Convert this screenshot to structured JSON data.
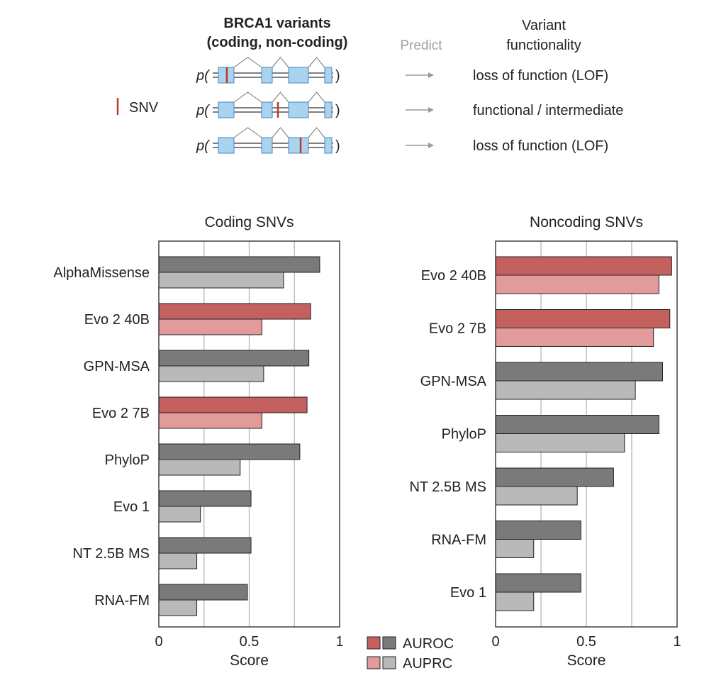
{
  "header": {
    "variants_title_line1": "BRCA1 variants",
    "variants_title_line2": "(coding, non-coding)",
    "predict_label": "Predict",
    "functionality_title_line1": "Variant",
    "functionality_title_line2": "functionality",
    "snv_legend_label": "SNV",
    "p_prefix": "p(",
    "p_suffix": ")",
    "arrow_glyph": "→",
    "rows": [
      {
        "outcome": "loss of function (LOF)"
      },
      {
        "outcome": "functional / intermediate"
      },
      {
        "outcome": "loss of function (LOF)"
      }
    ]
  },
  "colors": {
    "exon": "#a9d3ee",
    "exon_stroke": "#4a86b8",
    "snv": "#c0392b",
    "auroc_highlight": "#c4615f",
    "auprc_highlight": "#e29b9a",
    "auroc_other": "#7a7a7a",
    "auprc_other": "#b9b9b9",
    "gridline": "#b5b5b5",
    "predict_text": "#a0a0a0"
  },
  "legend": {
    "auroc_label": "AUROC",
    "auprc_label": "AUPRC"
  },
  "chart_data": [
    {
      "type": "bar",
      "orientation": "horizontal",
      "title": "Coding SNVs",
      "xlabel": "Score",
      "xlim": [
        0,
        1
      ],
      "xticks": [
        0,
        0.5,
        1
      ],
      "xtick_labels": [
        "0",
        "0.5",
        "1"
      ],
      "gridlines": [
        0.25,
        0.5,
        0.75
      ],
      "categories": [
        "AlphaMissense",
        "Evo 2 40B",
        "GPN-MSA",
        "Evo 2 7B",
        "PhyloP",
        "Evo 1",
        "NT 2.5B MS",
        "RNA-FM"
      ],
      "highlight": [
        false,
        true,
        false,
        true,
        false,
        false,
        false,
        false
      ],
      "series": [
        {
          "name": "AUROC",
          "values": [
            0.89,
            0.84,
            0.83,
            0.82,
            0.78,
            0.51,
            0.51,
            0.49
          ]
        },
        {
          "name": "AUPRC",
          "values": [
            0.69,
            0.57,
            0.58,
            0.57,
            0.45,
            0.23,
            0.21,
            0.21
          ]
        }
      ]
    },
    {
      "type": "bar",
      "orientation": "horizontal",
      "title": "Noncoding SNVs",
      "xlabel": "Score",
      "xlim": [
        0,
        1
      ],
      "xticks": [
        0,
        0.5,
        1
      ],
      "xtick_labels": [
        "0",
        "0.5",
        "1"
      ],
      "gridlines": [
        0.25,
        0.5,
        0.75
      ],
      "categories": [
        "Evo 2 40B",
        "Evo 2 7B",
        "GPN-MSA",
        "PhyloP",
        "NT 2.5B MS",
        "RNA-FM",
        "Evo 1"
      ],
      "highlight": [
        true,
        true,
        false,
        false,
        false,
        false,
        false
      ],
      "series": [
        {
          "name": "AUROC",
          "values": [
            0.97,
            0.96,
            0.92,
            0.9,
            0.65,
            0.47,
            0.47
          ]
        },
        {
          "name": "AUPRC",
          "values": [
            0.9,
            0.87,
            0.77,
            0.71,
            0.45,
            0.21,
            0.21
          ]
        }
      ]
    }
  ]
}
